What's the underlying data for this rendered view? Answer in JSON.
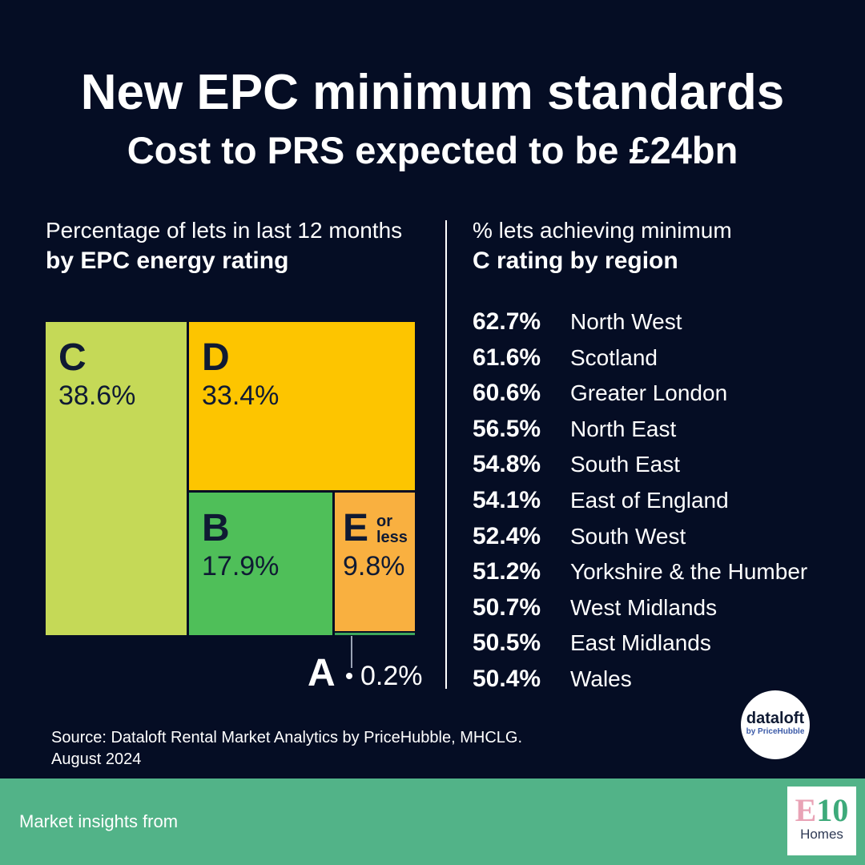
{
  "header": {
    "title": "New EPC minimum standards",
    "subtitle": "Cost to PRS expected to be £24bn"
  },
  "left_heading": {
    "line1": "Percentage of lets in last 12 months",
    "line2": "by EPC energy rating"
  },
  "right_heading": {
    "line1": "% lets achieving minimum",
    "line2": "C rating by region"
  },
  "chart_data": [
    {
      "type": "treemap",
      "unit": "%",
      "items": [
        {
          "label": "C",
          "value": 38.6,
          "display": "38.6%",
          "color": "#c5d957"
        },
        {
          "label": "D",
          "value": 33.4,
          "display": "33.4%",
          "color": "#fdc500"
        },
        {
          "label": "B",
          "value": 17.9,
          "display": "17.9%",
          "color": "#4fbf59"
        },
        {
          "label": "E",
          "note": "or less",
          "value": 9.8,
          "display": "9.8%",
          "color": "#f9b040"
        },
        {
          "label": "A",
          "value": 0.2,
          "display": "0.2%",
          "color": "#3da75a"
        }
      ]
    },
    {
      "type": "table",
      "columns": [
        "value",
        "region"
      ],
      "rows": [
        {
          "value": 62.7,
          "display": "62.7%",
          "region": "North West"
        },
        {
          "value": 61.6,
          "display": "61.6%",
          "region": "Scotland"
        },
        {
          "value": 60.6,
          "display": "60.6%",
          "region": "Greater London"
        },
        {
          "value": 56.5,
          "display": "56.5%",
          "region": "North East"
        },
        {
          "value": 54.8,
          "display": "54.8%",
          "region": "South East"
        },
        {
          "value": 54.1,
          "display": "54.1%",
          "region": "East of England"
        },
        {
          "value": 52.4,
          "display": "52.4%",
          "region": "South West"
        },
        {
          "value": 51.2,
          "display": "51.2%",
          "region": "Yorkshire & the Humber"
        },
        {
          "value": 50.7,
          "display": "50.7%",
          "region": "West Midlands"
        },
        {
          "value": 50.5,
          "display": "50.5%",
          "region": "East Midlands"
        },
        {
          "value": 50.4,
          "display": "50.4%",
          "region": "Wales"
        }
      ]
    }
  ],
  "source": {
    "line1": "Source: Dataloft Rental Market Analytics by PriceHubble, MHCLG.",
    "line2": "August 2024"
  },
  "badge": {
    "name": "dataloft",
    "byline": "by PriceHubble"
  },
  "footer": {
    "text": "Market insights from",
    "logo_mark_e": "E",
    "logo_mark_num": "10",
    "logo_word": "Homes"
  },
  "colors": {
    "background": "#050d24",
    "footer": "#52b388"
  }
}
